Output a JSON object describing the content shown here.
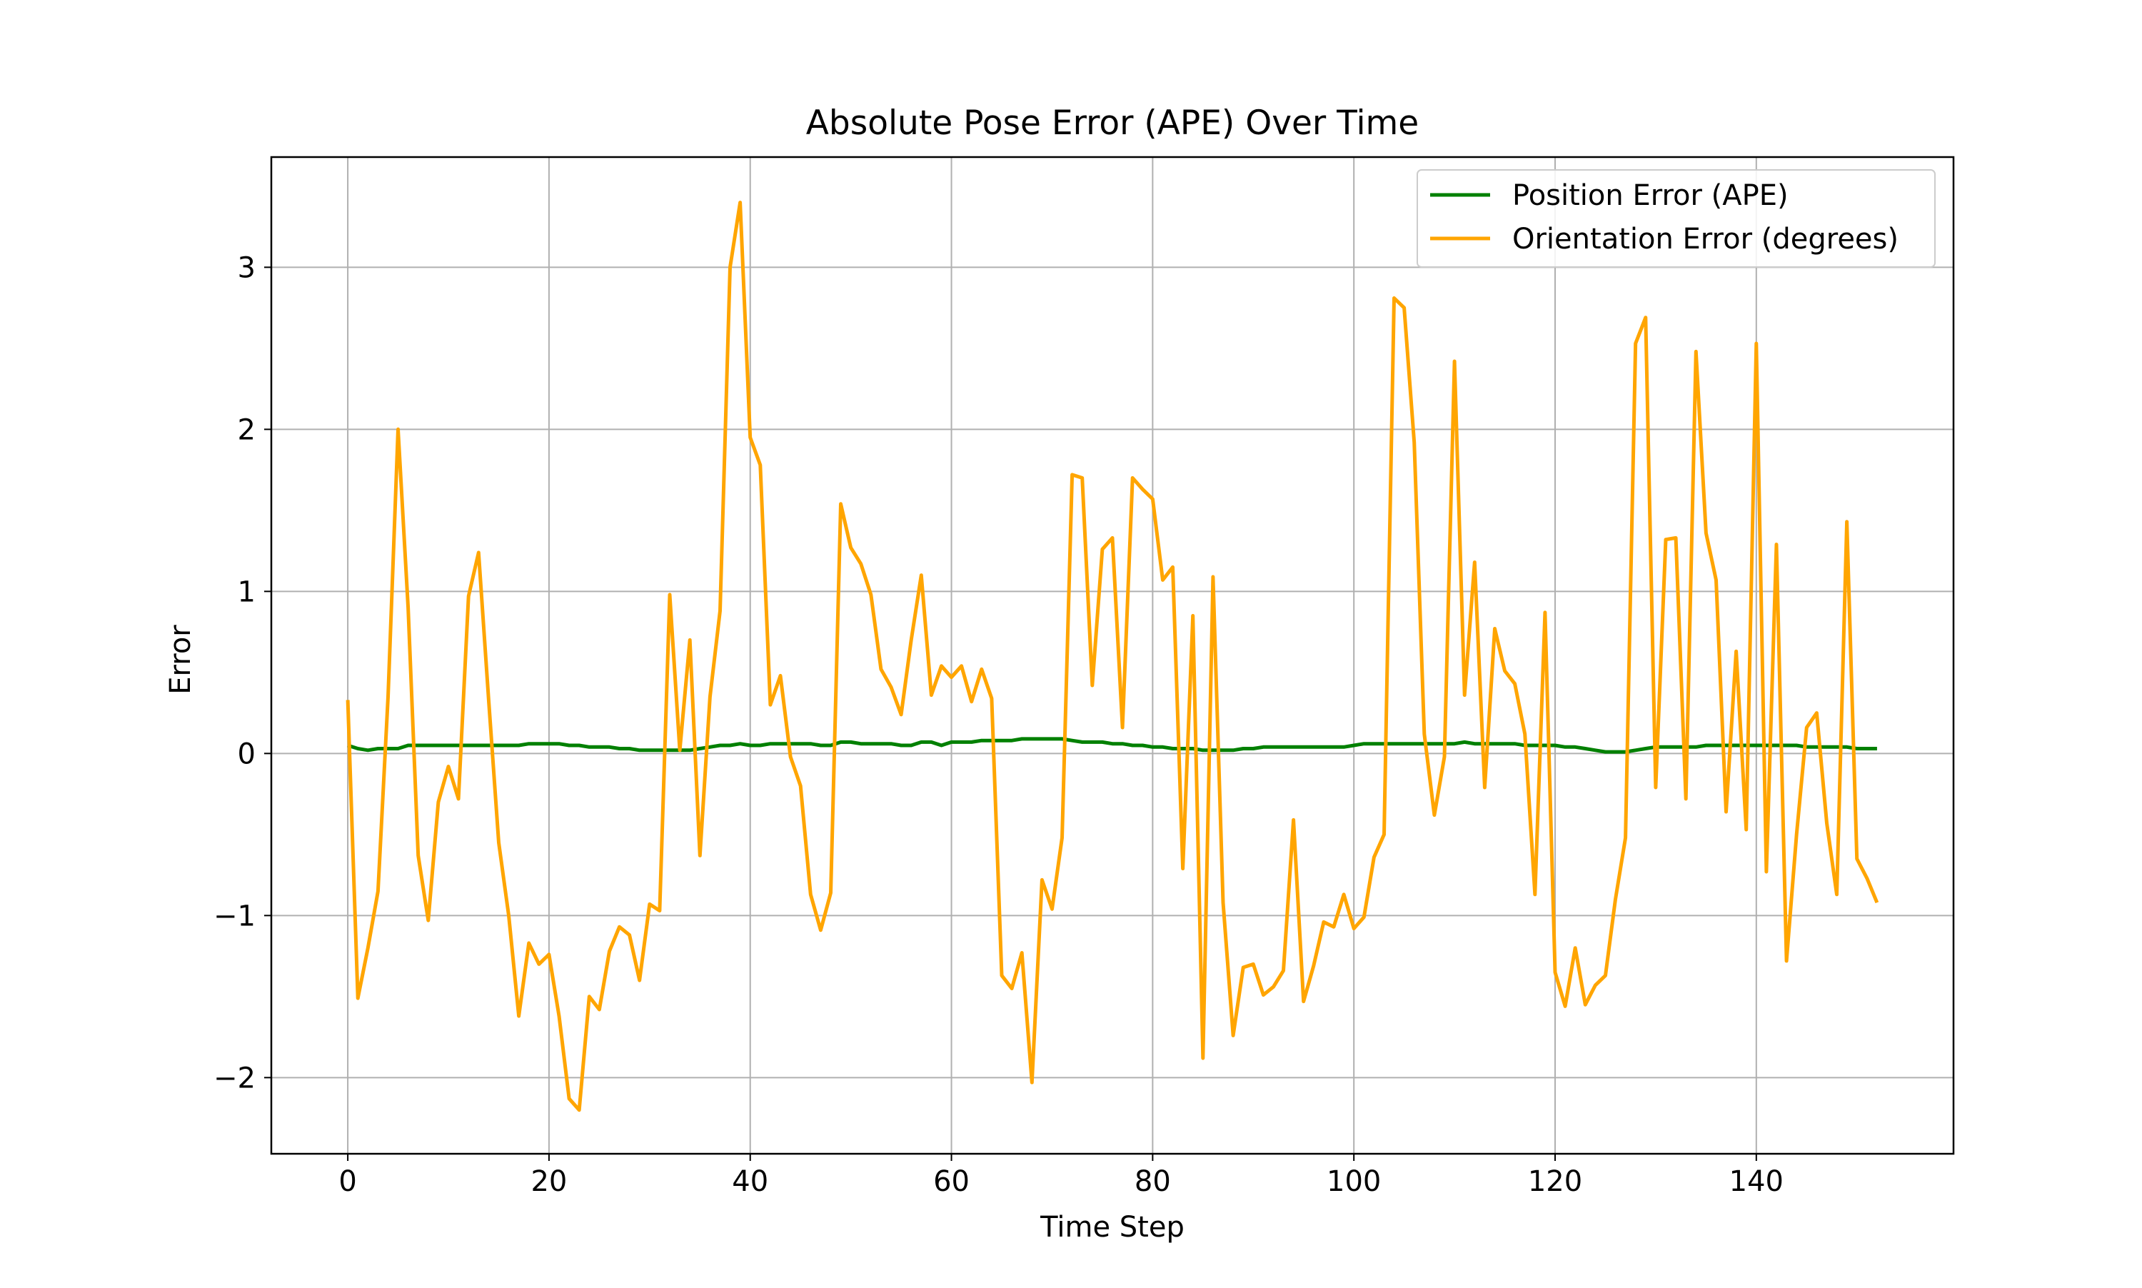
{
  "chart_data": {
    "type": "line",
    "title": "Absolute Pose Error (APE) Over Time",
    "xlabel": "Time Step",
    "ylabel": "Error",
    "xlim": [
      -7.6,
      159.6
    ],
    "ylim": [
      -2.47,
      3.68
    ],
    "xticks": [
      0,
      20,
      40,
      60,
      80,
      100,
      120,
      140
    ],
    "yticks": [
      -2,
      -1,
      0,
      1,
      2,
      3
    ],
    "grid": true,
    "legend_position": "top-right",
    "series": [
      {
        "name": "Position Error (APE)",
        "color": "#008000",
        "x": [
          0,
          1,
          2,
          3,
          4,
          5,
          6,
          7,
          8,
          9,
          10,
          11,
          12,
          13,
          14,
          15,
          16,
          17,
          18,
          19,
          20,
          21,
          22,
          23,
          24,
          25,
          26,
          27,
          28,
          29,
          30,
          31,
          32,
          33,
          34,
          35,
          36,
          37,
          38,
          39,
          40,
          41,
          42,
          43,
          44,
          45,
          46,
          47,
          48,
          49,
          50,
          51,
          52,
          53,
          54,
          55,
          56,
          57,
          58,
          59,
          60,
          61,
          62,
          63,
          64,
          65,
          66,
          67,
          68,
          69,
          70,
          71,
          72,
          73,
          74,
          75,
          76,
          77,
          78,
          79,
          80,
          81,
          82,
          83,
          84,
          85,
          86,
          87,
          88,
          89,
          90,
          91,
          92,
          93,
          94,
          95,
          96,
          97,
          98,
          99,
          100,
          101,
          102,
          103,
          104,
          105,
          106,
          107,
          108,
          109,
          110,
          111,
          112,
          113,
          114,
          115,
          116,
          117,
          118,
          119,
          120,
          121,
          122,
          123,
          124,
          125,
          126,
          127,
          128,
          129,
          130,
          131,
          132,
          133,
          134,
          135,
          136,
          137,
          138,
          139,
          140,
          141,
          142,
          143,
          144,
          145,
          146,
          147,
          148,
          149,
          150,
          151,
          152
        ],
        "values": [
          0.05,
          0.03,
          0.02,
          0.03,
          0.03,
          0.03,
          0.05,
          0.05,
          0.05,
          0.05,
          0.05,
          0.05,
          0.05,
          0.05,
          0.05,
          0.05,
          0.05,
          0.05,
          0.06,
          0.06,
          0.06,
          0.06,
          0.05,
          0.05,
          0.04,
          0.04,
          0.04,
          0.03,
          0.03,
          0.02,
          0.02,
          0.02,
          0.02,
          0.02,
          0.02,
          0.03,
          0.04,
          0.05,
          0.05,
          0.06,
          0.05,
          0.05,
          0.06,
          0.06,
          0.06,
          0.06,
          0.06,
          0.05,
          0.05,
          0.07,
          0.07,
          0.06,
          0.06,
          0.06,
          0.06,
          0.05,
          0.05,
          0.07,
          0.07,
          0.05,
          0.07,
          0.07,
          0.07,
          0.08,
          0.08,
          0.08,
          0.08,
          0.09,
          0.09,
          0.09,
          0.09,
          0.09,
          0.08,
          0.07,
          0.07,
          0.07,
          0.06,
          0.06,
          0.05,
          0.05,
          0.04,
          0.04,
          0.03,
          0.03,
          0.03,
          0.02,
          0.02,
          0.02,
          0.02,
          0.03,
          0.03,
          0.04,
          0.04,
          0.04,
          0.04,
          0.04,
          0.04,
          0.04,
          0.04,
          0.04,
          0.05,
          0.06,
          0.06,
          0.06,
          0.06,
          0.06,
          0.06,
          0.06,
          0.06,
          0.06,
          0.06,
          0.07,
          0.06,
          0.06,
          0.06,
          0.06,
          0.06,
          0.05,
          0.05,
          0.05,
          0.05,
          0.04,
          0.04,
          0.03,
          0.02,
          0.01,
          0.01,
          0.01,
          0.02,
          0.03,
          0.04,
          0.04,
          0.04,
          0.04,
          0.04,
          0.05,
          0.05,
          0.05,
          0.05,
          0.05,
          0.05,
          0.05,
          0.05,
          0.05,
          0.05,
          0.04,
          0.04,
          0.04,
          0.04,
          0.04,
          0.03,
          0.03,
          0.03
        ]
      },
      {
        "name": "Orientation Error (degrees)",
        "color": "#FFA500",
        "x": [
          0,
          1,
          2,
          3,
          4,
          5,
          6,
          7,
          8,
          9,
          10,
          11,
          12,
          13,
          14,
          15,
          16,
          17,
          18,
          19,
          20,
          21,
          22,
          23,
          24,
          25,
          26,
          27,
          28,
          29,
          30,
          31,
          32,
          33,
          34,
          35,
          36,
          37,
          38,
          39,
          40,
          41,
          42,
          43,
          44,
          45,
          46,
          47,
          48,
          49,
          50,
          51,
          52,
          53,
          54,
          55,
          56,
          57,
          58,
          59,
          60,
          61,
          62,
          63,
          64,
          65,
          66,
          67,
          68,
          69,
          70,
          71,
          72,
          73,
          74,
          75,
          76,
          77,
          78,
          79,
          80,
          81,
          82,
          83,
          84,
          85,
          86,
          87,
          88,
          89,
          90,
          91,
          92,
          93,
          94,
          95,
          96,
          97,
          98,
          99,
          100,
          101,
          102,
          103,
          104,
          105,
          106,
          107,
          108,
          109,
          110,
          111,
          112,
          113,
          114,
          115,
          116,
          117,
          118,
          119,
          120,
          121,
          122,
          123,
          124,
          125,
          126,
          127,
          128,
          129,
          130,
          131,
          132,
          133,
          134,
          135,
          136,
          137,
          138,
          139,
          140,
          141,
          142,
          143,
          144,
          145,
          146,
          147,
          148,
          149,
          150,
          151,
          152
        ],
        "values": [
          0.33,
          -1.51,
          -1.2,
          -0.85,
          0.35,
          2.0,
          0.9,
          -0.63,
          -1.03,
          -0.3,
          -0.08,
          -0.28,
          0.97,
          1.24,
          0.33,
          -0.55,
          -1.0,
          -1.62,
          -1.17,
          -1.3,
          -1.24,
          -1.62,
          -2.13,
          -2.2,
          -1.5,
          -1.58,
          -1.22,
          -1.07,
          -1.12,
          -1.4,
          -0.93,
          -0.97,
          0.98,
          0.02,
          0.7,
          -0.63,
          0.35,
          0.88,
          3.0,
          3.4,
          1.95,
          1.78,
          0.3,
          0.48,
          -0.02,
          -0.2,
          -0.87,
          -1.09,
          -0.86,
          1.54,
          1.27,
          1.17,
          0.98,
          0.52,
          0.41,
          0.24,
          0.7,
          1.1,
          0.36,
          0.54,
          0.47,
          0.54,
          0.32,
          0.52,
          0.34,
          -1.37,
          -1.45,
          -1.23,
          -2.03,
          -0.78,
          -0.96,
          -0.52,
          1.72,
          1.7,
          0.42,
          1.26,
          1.33,
          0.16,
          1.7,
          1.63,
          1.57,
          1.07,
          1.15,
          -0.71,
          0.85,
          -1.88,
          1.09,
          -0.92,
          -1.74,
          -1.32,
          -1.3,
          -1.49,
          -1.44,
          -1.34,
          -0.41,
          -1.53,
          -1.31,
          -1.04,
          -1.07,
          -0.87,
          -1.08,
          -1.01,
          -0.64,
          -0.5,
          2.81,
          2.75,
          1.92,
          0.12,
          -0.38,
          -0.02,
          2.42,
          0.36,
          1.18,
          -0.21,
          0.77,
          0.51,
          0.43,
          0.12,
          -0.87,
          0.87,
          -1.35,
          -1.56,
          -1.2,
          -1.55,
          -1.43,
          -1.37,
          -0.9,
          -0.52,
          2.53,
          2.69,
          -0.21,
          1.32,
          1.33,
          -0.28,
          2.48,
          1.36,
          1.07,
          -0.36,
          0.63,
          -0.47,
          2.53,
          -0.73,
          1.29,
          -1.28,
          -0.5,
          0.16,
          0.25,
          -0.43,
          -0.87,
          1.43,
          -0.65,
          -0.77,
          -0.92
        ]
      }
    ]
  }
}
